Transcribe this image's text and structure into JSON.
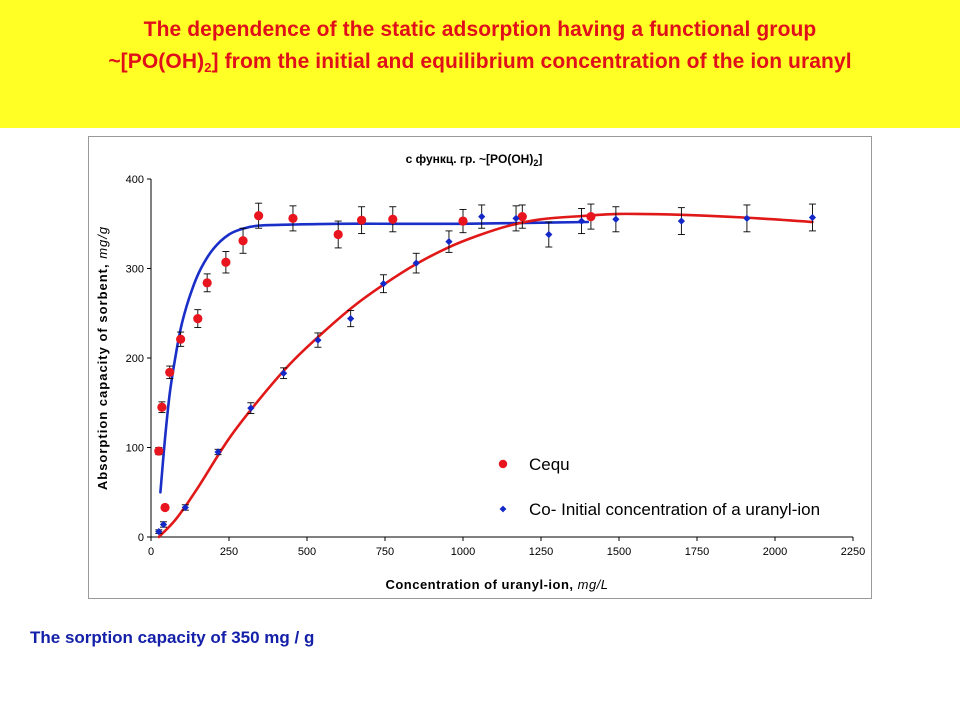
{
  "slide": {
    "title_line1": "The dependence of the static adsorption having a functional group",
    "title_line2_prefix": "~[PO(OH)",
    "title_line2_sub": "2",
    "title_line2_suffix": "] from the initial and equilibrium concentration of the ion uranyl",
    "caption": "The sorption capacity of 350 mg / g",
    "banner_color": "#ffff26",
    "title_color": "#e0101a",
    "caption_color": "#1420a8"
  },
  "chart_data": {
    "type": "scatter",
    "title": "с функц. гр. ~[PO(OH)2]",
    "title_main": "с функц. гр. ~[PO(OH)",
    "title_sub": "2",
    "title_end": "]",
    "xlabel": "Concentration of uranyl-ion,",
    "xlabel_unit": "mg/L",
    "ylabel": "Absorption capacity of sorbent,",
    "ylabel_unit": "mg/g",
    "xlim": [
      0,
      2250
    ],
    "ylim": [
      0,
      400
    ],
    "xticks": [
      0,
      250,
      500,
      750,
      1000,
      1250,
      1500,
      1750,
      2000,
      2250
    ],
    "yticks": [
      0,
      100,
      200,
      300,
      400
    ],
    "grid": false,
    "legend_position": "inside-bottom-right",
    "series": [
      {
        "name": "Cequ",
        "marker": "circle",
        "color": "#e8141e",
        "points": [
          {
            "x": 25,
            "y": 96,
            "err": 4
          },
          {
            "x": 35,
            "y": 145,
            "err": 6
          },
          {
            "x": 45,
            "y": 33,
            "err": 3
          },
          {
            "x": 60,
            "y": 184,
            "err": 7
          },
          {
            "x": 95,
            "y": 221,
            "err": 8
          },
          {
            "x": 150,
            "y": 244,
            "err": 10
          },
          {
            "x": 180,
            "y": 284,
            "err": 10
          },
          {
            "x": 240,
            "y": 307,
            "err": 12
          },
          {
            "x": 295,
            "y": 331,
            "err": 14
          },
          {
            "x": 345,
            "y": 359,
            "err": 14
          },
          {
            "x": 455,
            "y": 356,
            "err": 14
          },
          {
            "x": 600,
            "y": 338,
            "err": 15
          },
          {
            "x": 675,
            "y": 354,
            "err": 15
          },
          {
            "x": 775,
            "y": 355,
            "err": 14
          },
          {
            "x": 1000,
            "y": 353,
            "err": 13
          },
          {
            "x": 1190,
            "y": 358,
            "err": 13
          },
          {
            "x": 1410,
            "y": 358,
            "err": 14
          }
        ]
      },
      {
        "name": "Co- Initial concentration of a uranyl-ion",
        "marker": "diamond",
        "color": "#1428c8",
        "points": [
          {
            "x": 25,
            "y": 6,
            "err": 2
          },
          {
            "x": 40,
            "y": 14,
            "err": 3
          },
          {
            "x": 110,
            "y": 33,
            "err": 3
          },
          {
            "x": 215,
            "y": 95,
            "err": 3
          },
          {
            "x": 320,
            "y": 144,
            "err": 6
          },
          {
            "x": 425,
            "y": 183,
            "err": 6
          },
          {
            "x": 535,
            "y": 220,
            "err": 8
          },
          {
            "x": 640,
            "y": 244,
            "err": 9
          },
          {
            "x": 745,
            "y": 283,
            "err": 10
          },
          {
            "x": 850,
            "y": 306,
            "err": 11
          },
          {
            "x": 955,
            "y": 330,
            "err": 12
          },
          {
            "x": 1060,
            "y": 358,
            "err": 13
          },
          {
            "x": 1170,
            "y": 356,
            "err": 14
          },
          {
            "x": 1275,
            "y": 338,
            "err": 14
          },
          {
            "x": 1380,
            "y": 353,
            "err": 14
          },
          {
            "x": 1490,
            "y": 355,
            "err": 14
          },
          {
            "x": 1700,
            "y": 353,
            "err": 15
          },
          {
            "x": 1910,
            "y": 356,
            "err": 15
          },
          {
            "x": 2120,
            "y": 357,
            "err": 15
          }
        ]
      }
    ],
    "fit_curves": [
      {
        "color": "#1a2ec8",
        "for": "Cequ",
        "points": [
          [
            30,
            50
          ],
          [
            45,
            110
          ],
          [
            60,
            160
          ],
          [
            80,
            205
          ],
          [
            100,
            240
          ],
          [
            130,
            275
          ],
          [
            160,
            300
          ],
          [
            200,
            322
          ],
          [
            250,
            338
          ],
          [
            300,
            345
          ],
          [
            350,
            348
          ],
          [
            450,
            349
          ],
          [
            600,
            350
          ],
          [
            800,
            350
          ],
          [
            1000,
            350
          ],
          [
            1200,
            351
          ],
          [
            1400,
            352
          ]
        ]
      },
      {
        "color": "#e01818",
        "for": "Co- Initial concentration of a uranyl-ion",
        "points": [
          [
            25,
            0
          ],
          [
            80,
            20
          ],
          [
            150,
            55
          ],
          [
            250,
            110
          ],
          [
            350,
            155
          ],
          [
            450,
            195
          ],
          [
            550,
            228
          ],
          [
            650,
            258
          ],
          [
            750,
            283
          ],
          [
            850,
            305
          ],
          [
            950,
            323
          ],
          [
            1050,
            337
          ],
          [
            1150,
            348
          ],
          [
            1250,
            355
          ],
          [
            1400,
            359
          ],
          [
            1500,
            361
          ],
          [
            1700,
            360
          ],
          [
            1900,
            357
          ],
          [
            2120,
            352
          ]
        ]
      }
    ]
  }
}
